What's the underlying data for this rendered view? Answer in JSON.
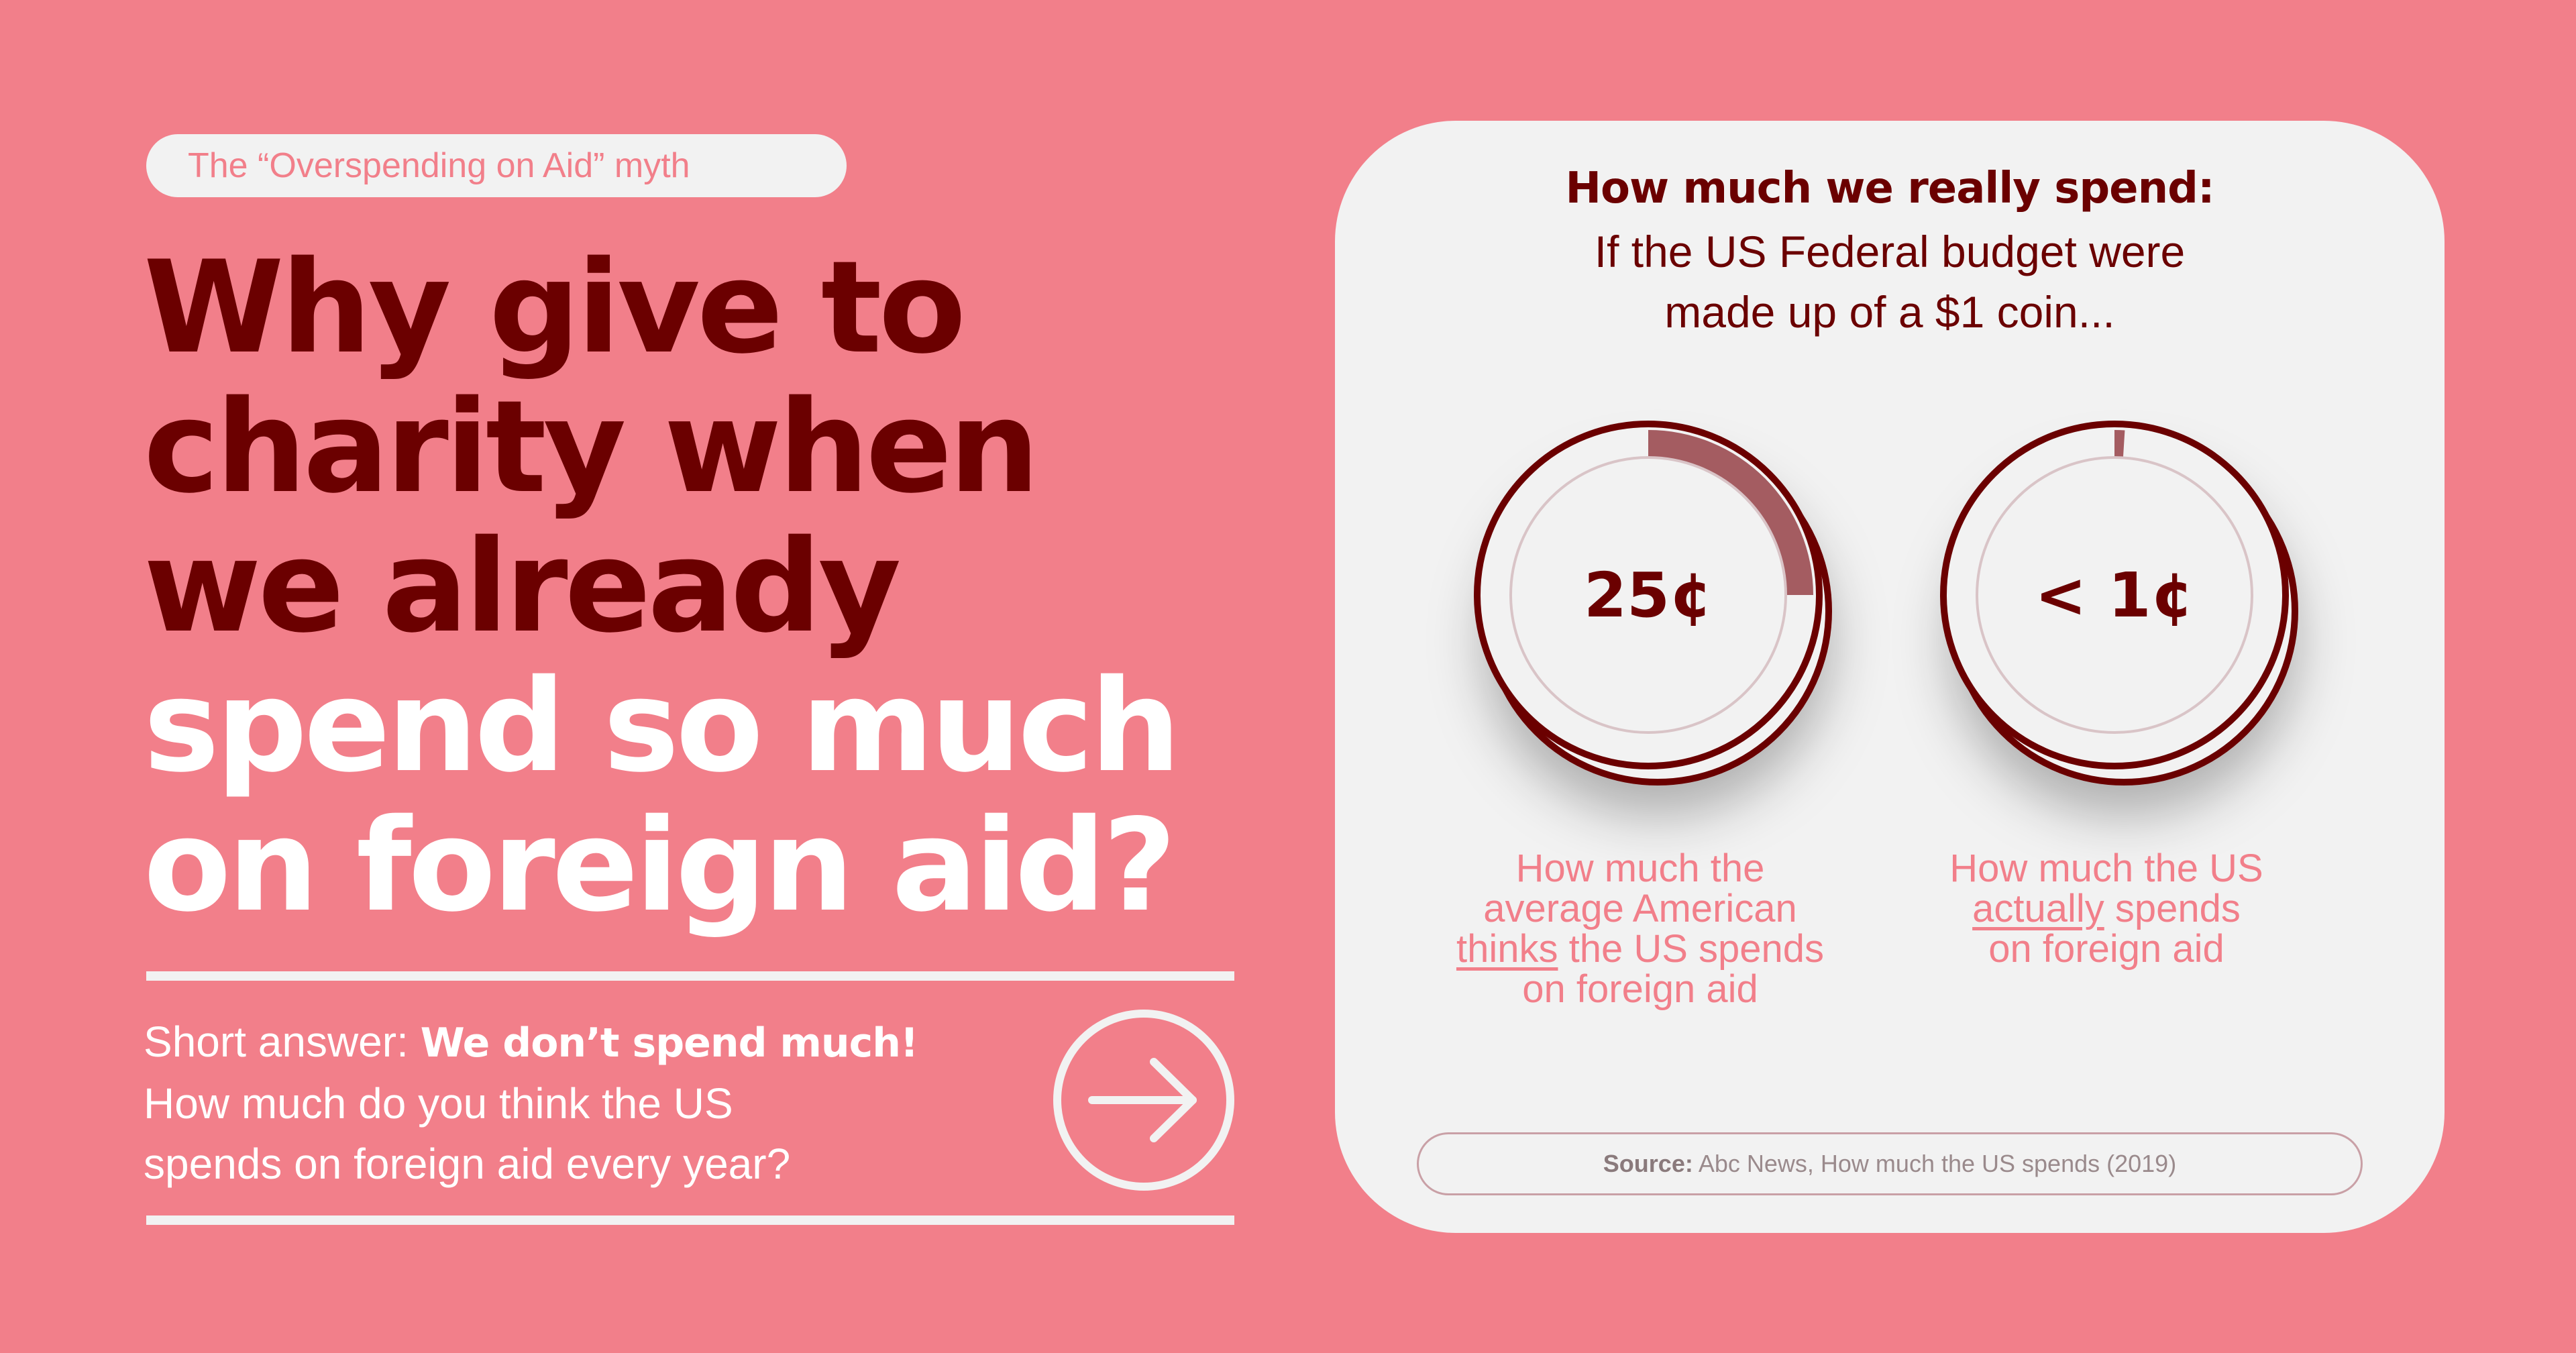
{
  "tag": "The “Overspending on Aid” myth",
  "headline": {
    "dark_lines": [
      "Why give to",
      "charity when",
      "we already"
    ],
    "light_lines": [
      "spend so much",
      "on foreign aid?"
    ]
  },
  "answer": {
    "prefix": "Short answer: ",
    "bold": "We don’t spend much!",
    "line2": "How much do you think the US",
    "line3": "spends on foreign aid every year?"
  },
  "card": {
    "title": "How much we really spend:",
    "subtitle_line1": "If the US Federal budget were",
    "subtitle_line2": "made up of a $1 coin..."
  },
  "captions": {
    "left": {
      "line1": "How much the",
      "line2": "average American",
      "underlined": "thinks",
      "line3_rest": " the US spends",
      "line4": "on foreign aid"
    },
    "right": {
      "line1": "How much the US",
      "underlined": "actually",
      "line2_rest": " spends",
      "line3": "on foreign aid"
    }
  },
  "source": {
    "label": "Source:",
    "text": " Abc News, How much the US spends (2019)"
  },
  "chart_data": {
    "type": "pie",
    "title": "How much we really spend: If the US Federal budget were made up of a $1 coin...",
    "unit": "cents of a $1 coin",
    "total": 100,
    "series": [
      {
        "name": "How much the average American thinks the US spends on foreign aid",
        "label": "25¢",
        "value": 25
      },
      {
        "name": "How much the US actually spends on foreign aid",
        "label": "< 1¢",
        "value": 1
      }
    ]
  },
  "colors": {
    "background": "#f27f8a",
    "dark": "#6b0000",
    "light": "#f2f2f2",
    "wedge": "#a45c61"
  }
}
